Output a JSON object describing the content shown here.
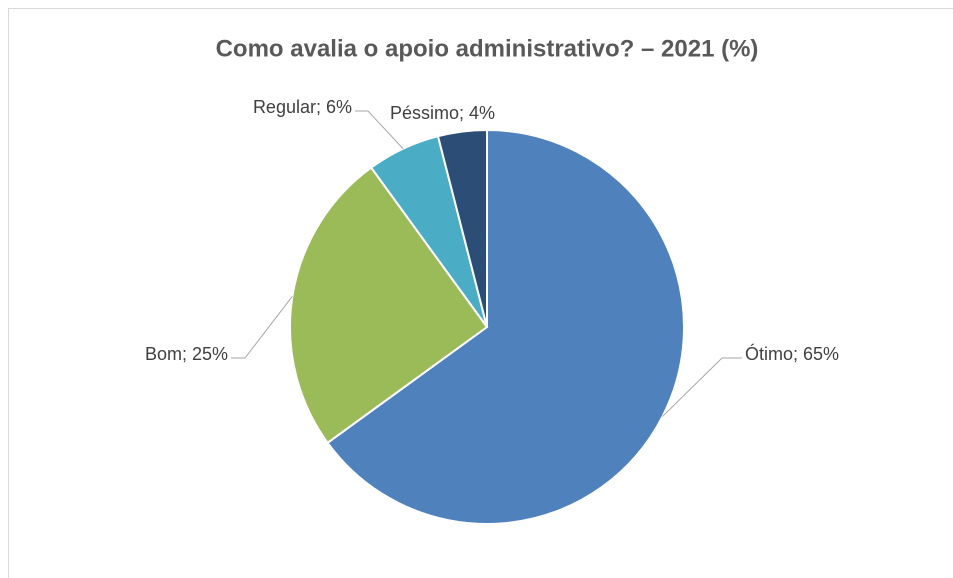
{
  "chart_data": {
    "type": "pie",
    "title": "Como avalia o apoio administrativo? – 2021 (%)",
    "categories": [
      "Ótimo",
      "Bom",
      "Regular",
      "Péssimo"
    ],
    "values": [
      65,
      25,
      6,
      4
    ],
    "value_labels": [
      "Ótimo; 65%",
      "Bom; 25%",
      "Regular; 6%",
      "Péssimo; 4%"
    ],
    "colors": [
      "#4f81bd",
      "#9bbb59",
      "#4bacc6",
      "#2c4d75"
    ]
  }
}
